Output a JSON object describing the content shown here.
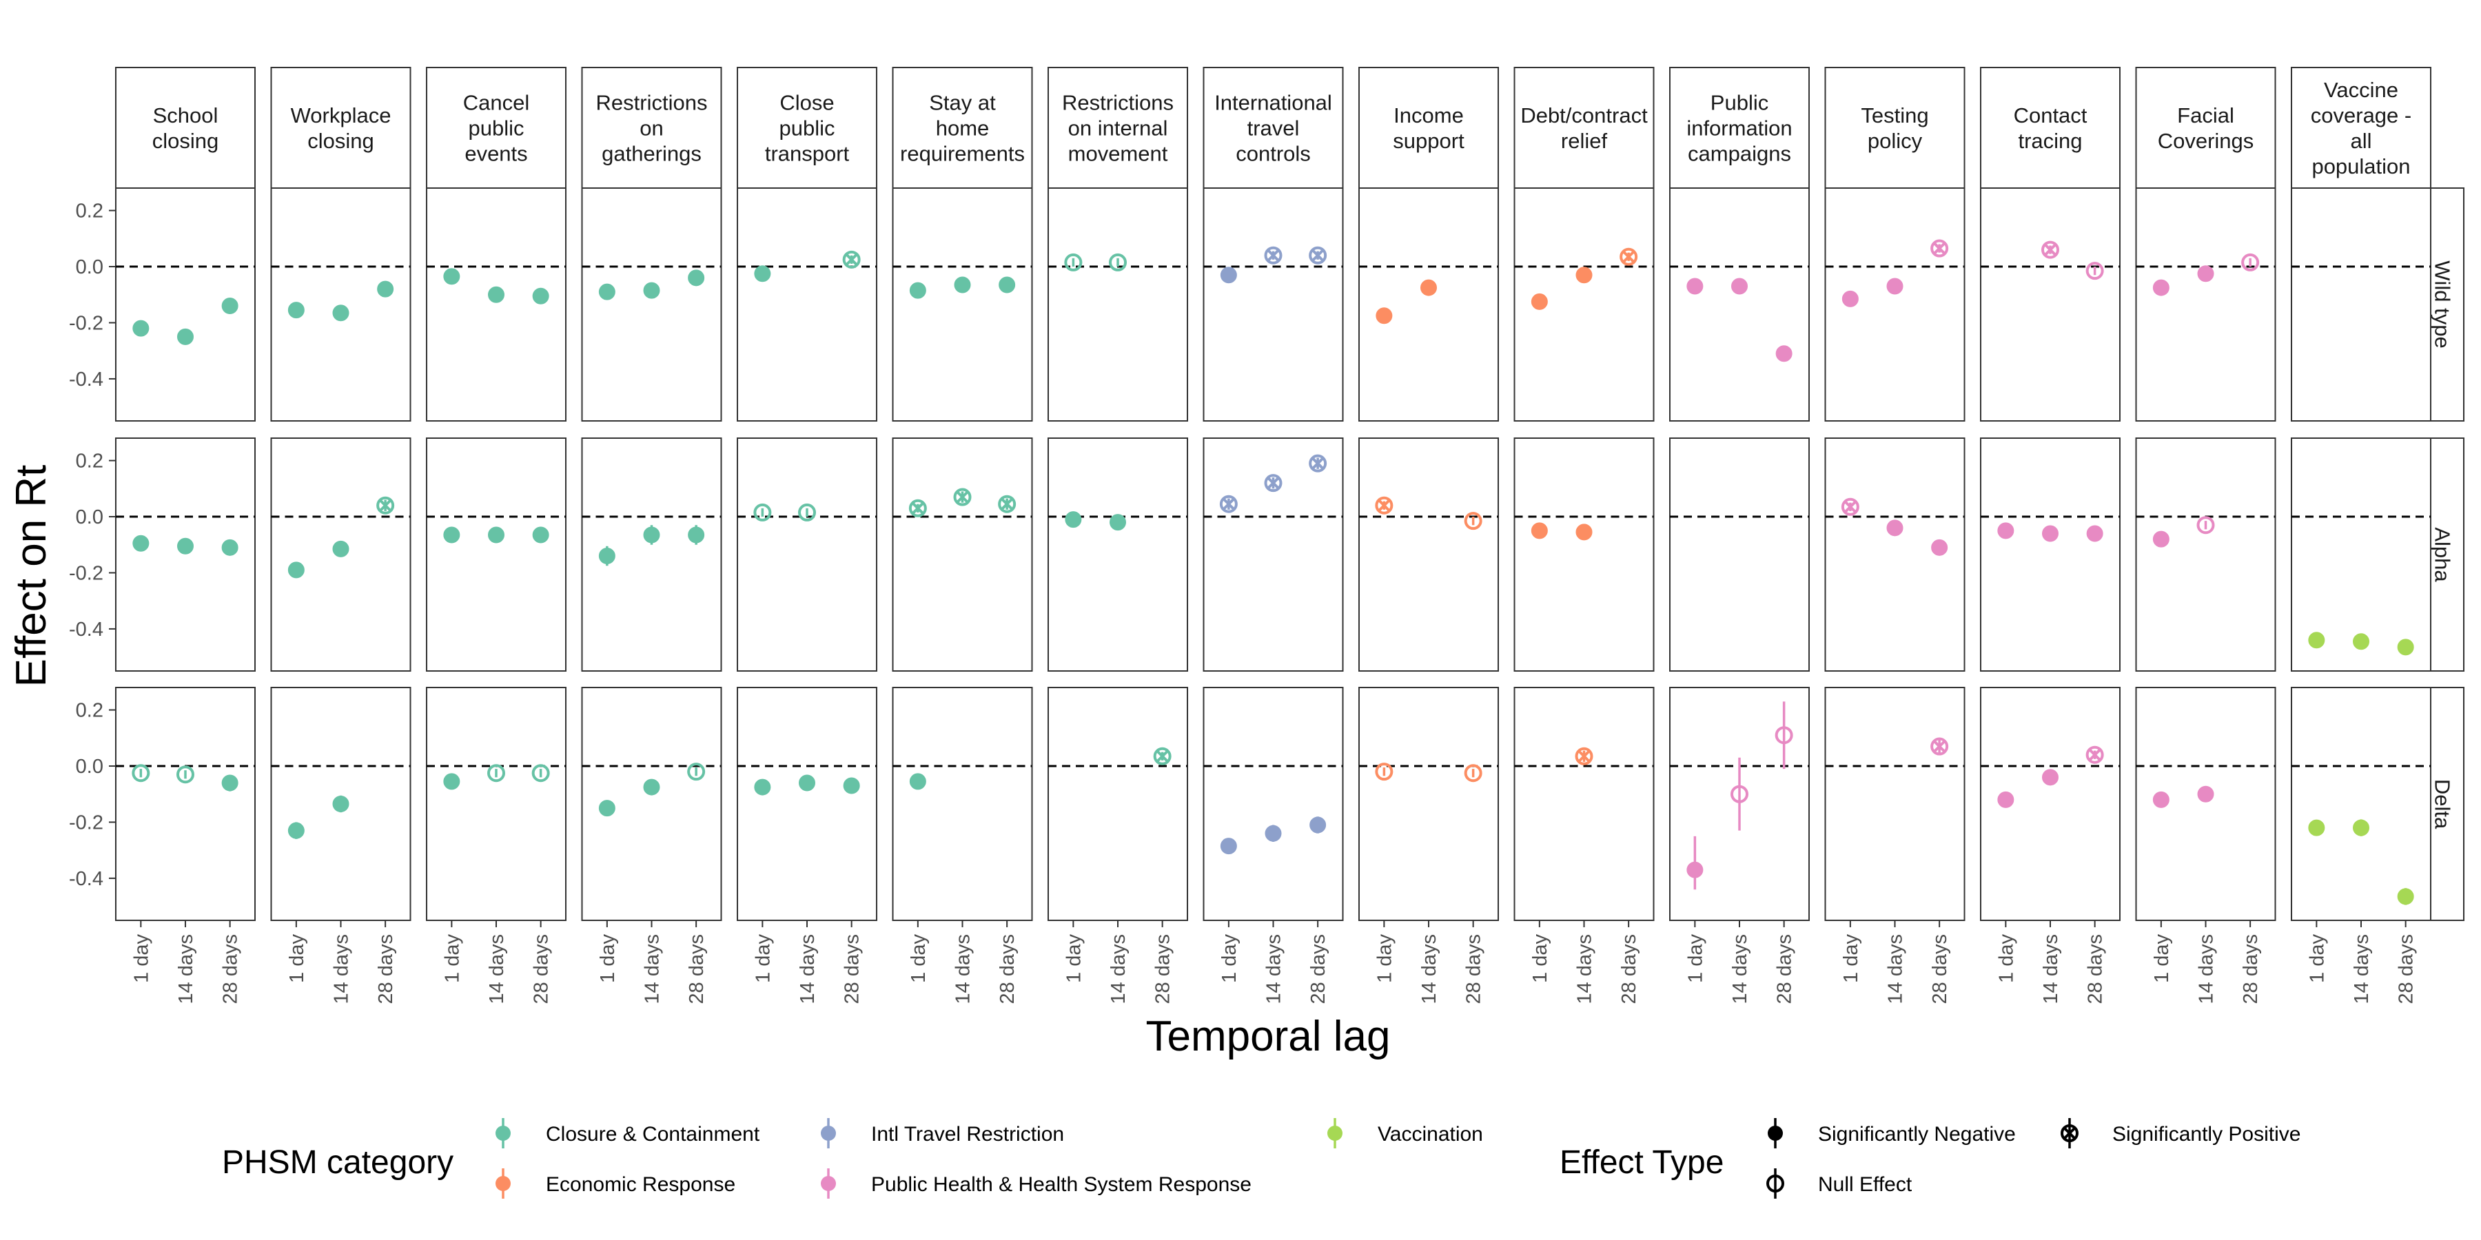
{
  "chart_data": {
    "type": "scatter",
    "subtype": "faceted point-range (estimate with interval)",
    "ylabel": "Effect on Rt",
    "xlabel": "Temporal lag",
    "x_categories": [
      "1 day",
      "14 days",
      "28 days"
    ],
    "yticks": [
      "0.2",
      "0.0",
      "-0.2",
      "-0.4"
    ],
    "ytick_values": [
      0.2,
      0.0,
      -0.2,
      -0.4
    ],
    "ylim": [
      -0.55,
      0.28
    ],
    "reference_line": 0,
    "grid": false,
    "variants": [
      "Wild type",
      "Alpha",
      "Delta"
    ],
    "measures": [
      {
        "name": "School closing",
        "label_lines": [
          "School",
          "closing"
        ],
        "category": "Closure & Containment"
      },
      {
        "name": "Workplace closing",
        "label_lines": [
          "Workplace",
          "closing"
        ],
        "category": "Closure & Containment"
      },
      {
        "name": "Cancel public events",
        "label_lines": [
          "Cancel",
          "public",
          "events"
        ],
        "category": "Closure & Containment"
      },
      {
        "name": "Restrictions on gatherings",
        "label_lines": [
          "Restrictions",
          "on",
          "gatherings"
        ],
        "category": "Closure & Containment"
      },
      {
        "name": "Close public transport",
        "label_lines": [
          "Close",
          "public",
          "transport"
        ],
        "category": "Closure & Containment"
      },
      {
        "name": "Stay at home requirements",
        "label_lines": [
          "Stay at",
          "home",
          "requirements"
        ],
        "category": "Closure & Containment"
      },
      {
        "name": "Restrictions on internal movement",
        "label_lines": [
          "Restrictions",
          "on internal",
          "movement"
        ],
        "category": "Closure & Containment"
      },
      {
        "name": "International travel controls",
        "label_lines": [
          "International",
          "travel",
          "controls"
        ],
        "category": "Intl Travel Restriction"
      },
      {
        "name": "Income support",
        "label_lines": [
          "Income",
          "support"
        ],
        "category": "Economic Response"
      },
      {
        "name": "Debt/contract relief",
        "label_lines": [
          "Debt/contract",
          "relief"
        ],
        "category": "Economic Response"
      },
      {
        "name": "Public information campaigns",
        "label_lines": [
          "Public",
          "information",
          "campaigns"
        ],
        "category": "Public Health & Health System Response"
      },
      {
        "name": "Testing policy",
        "label_lines": [
          "Testing",
          "policy"
        ],
        "category": "Public Health & Health System Response"
      },
      {
        "name": "Contact tracing",
        "label_lines": [
          "Contact",
          "tracing"
        ],
        "category": "Public Health & Health System Response"
      },
      {
        "name": "Facial Coverings",
        "label_lines": [
          "Facial",
          "Coverings"
        ],
        "category": "Public Health & Health System Response"
      },
      {
        "name": "Vaccine coverage - all population",
        "label_lines": [
          "Vaccine",
          "coverage -",
          "all",
          "population"
        ],
        "category": "Vaccination"
      }
    ],
    "points": [
      [
        [
          [
            -0.22,
            "neg",
            -0.235,
            -0.205
          ],
          [
            -0.25,
            "neg",
            -0.265,
            -0.235
          ],
          [
            -0.14,
            "neg",
            -0.155,
            -0.125
          ]
        ],
        [
          [
            -0.155,
            "neg",
            -0.17,
            -0.14
          ],
          [
            -0.165,
            "neg",
            -0.18,
            -0.15
          ],
          [
            -0.08,
            "neg",
            -0.095,
            -0.065
          ]
        ],
        [
          [
            -0.035,
            "neg",
            -0.048,
            -0.022
          ],
          [
            -0.1,
            "neg",
            -0.113,
            -0.087
          ],
          [
            -0.105,
            "neg",
            -0.12,
            -0.09
          ]
        ],
        [
          [
            -0.09,
            "neg",
            -0.103,
            -0.077
          ],
          [
            -0.085,
            "neg",
            -0.098,
            -0.072
          ],
          [
            -0.04,
            "neg",
            -0.053,
            -0.027
          ]
        ],
        [
          [
            -0.025,
            "neg",
            -0.038,
            -0.012
          ],
          null,
          [
            0.025,
            "pos",
            0.01,
            0.04
          ]
        ],
        [
          [
            -0.085,
            "neg",
            -0.098,
            -0.072
          ],
          [
            -0.065,
            "neg",
            -0.078,
            -0.052
          ],
          [
            -0.065,
            "neg",
            -0.078,
            -0.052
          ]
        ],
        [
          [
            0.015,
            "null",
            0.0,
            0.03
          ],
          [
            0.015,
            "null",
            0.0,
            0.03
          ],
          null
        ],
        [
          [
            -0.03,
            "neg",
            -0.045,
            -0.015
          ],
          [
            0.04,
            "pos",
            0.025,
            0.055
          ],
          [
            0.04,
            "pos",
            0.025,
            0.055
          ]
        ],
        [
          [
            -0.175,
            "neg",
            -0.19,
            -0.16
          ],
          [
            -0.075,
            "neg",
            -0.088,
            -0.062
          ],
          null
        ],
        [
          [
            -0.125,
            "neg",
            -0.14,
            -0.11
          ],
          [
            -0.03,
            "neg",
            -0.043,
            -0.017
          ],
          [
            0.035,
            "pos",
            0.02,
            0.05
          ]
        ],
        [
          [
            -0.07,
            "neg",
            -0.09,
            -0.05
          ],
          [
            -0.07,
            "neg",
            -0.085,
            -0.055
          ],
          [
            -0.31,
            "neg",
            -0.325,
            -0.295
          ]
        ],
        [
          [
            -0.115,
            "neg",
            -0.13,
            -0.1
          ],
          [
            -0.07,
            "neg",
            -0.083,
            -0.057
          ],
          [
            0.065,
            "pos",
            0.05,
            0.08
          ]
        ],
        [
          null,
          [
            0.06,
            "pos",
            0.045,
            0.075
          ],
          [
            -0.015,
            "null",
            -0.03,
            0.0
          ]
        ],
        [
          [
            -0.075,
            "neg",
            -0.09,
            -0.06
          ],
          [
            -0.025,
            "neg",
            -0.038,
            -0.012
          ],
          [
            0.015,
            "null",
            0.0,
            0.03
          ]
        ],
        [
          null,
          null,
          null
        ]
      ],
      [
        [
          [
            -0.095,
            "neg",
            -0.11,
            -0.08
          ],
          [
            -0.105,
            "neg",
            -0.12,
            -0.09
          ],
          [
            -0.11,
            "neg",
            -0.125,
            -0.095
          ]
        ],
        [
          [
            -0.19,
            "neg",
            -0.205,
            -0.175
          ],
          [
            -0.115,
            "neg",
            -0.13,
            -0.1
          ],
          [
            0.04,
            "pos",
            0.02,
            0.06
          ]
        ],
        [
          [
            -0.065,
            "neg",
            -0.08,
            -0.05
          ],
          [
            -0.065,
            "neg",
            -0.078,
            -0.052
          ],
          [
            -0.065,
            "neg",
            -0.08,
            -0.05
          ]
        ],
        [
          [
            -0.14,
            "neg",
            -0.175,
            -0.105
          ],
          [
            -0.065,
            "neg",
            -0.1,
            -0.03
          ],
          [
            -0.065,
            "neg",
            -0.1,
            -0.03
          ]
        ],
        [
          [
            0.015,
            "null",
            0.0,
            0.03
          ],
          [
            0.015,
            "null",
            0.0,
            0.03
          ],
          null
        ],
        [
          [
            0.03,
            "pos",
            0.015,
            0.045
          ],
          [
            0.07,
            "pos",
            0.05,
            0.09
          ],
          [
            0.045,
            "pos",
            0.025,
            0.065
          ]
        ],
        [
          [
            -0.01,
            "neg",
            -0.02,
            0.0
          ],
          [
            -0.02,
            "neg",
            -0.03,
            -0.01
          ],
          null
        ],
        [
          [
            0.045,
            "pos",
            0.025,
            0.065
          ],
          [
            0.12,
            "pos",
            0.1,
            0.14
          ],
          [
            0.19,
            "pos",
            0.17,
            0.21
          ]
        ],
        [
          [
            0.04,
            "pos",
            0.025,
            0.055
          ],
          null,
          [
            -0.015,
            "null",
            -0.03,
            0.0
          ]
        ],
        [
          [
            -0.05,
            "neg",
            -0.063,
            -0.037
          ],
          [
            -0.055,
            "neg",
            -0.068,
            -0.042
          ],
          null
        ],
        [
          null,
          null,
          null
        ],
        [
          [
            0.035,
            "pos",
            0.02,
            0.05
          ],
          [
            -0.04,
            "neg",
            -0.053,
            -0.027
          ],
          [
            -0.11,
            "neg",
            -0.123,
            -0.097
          ]
        ],
        [
          [
            -0.05,
            "neg",
            -0.063,
            -0.037
          ],
          [
            -0.06,
            "neg",
            -0.073,
            -0.047
          ],
          [
            -0.06,
            "neg",
            -0.073,
            -0.047
          ]
        ],
        [
          [
            -0.08,
            "neg",
            -0.095,
            -0.065
          ],
          [
            -0.03,
            "null",
            -0.045,
            -0.015
          ],
          null
        ],
        [
          [
            -0.44,
            "neg",
            -0.455,
            -0.425
          ],
          [
            -0.445,
            "neg",
            -0.46,
            -0.43
          ],
          [
            -0.465,
            "neg",
            -0.49,
            -0.44
          ]
        ]
      ],
      [
        [
          [
            -0.025,
            "null",
            -0.04,
            -0.01
          ],
          [
            -0.03,
            "null",
            -0.045,
            -0.015
          ],
          [
            -0.06,
            "neg",
            -0.09,
            -0.035
          ]
        ],
        [
          [
            -0.23,
            "neg",
            -0.26,
            -0.2
          ],
          [
            -0.135,
            "neg",
            -0.165,
            -0.105
          ],
          null
        ],
        [
          [
            -0.055,
            "neg",
            -0.068,
            -0.042
          ],
          [
            -0.025,
            "null",
            -0.04,
            -0.01
          ],
          [
            -0.025,
            "null",
            -0.04,
            -0.01
          ]
        ],
        [
          [
            -0.15,
            "neg",
            -0.165,
            -0.135
          ],
          [
            -0.075,
            "neg",
            -0.09,
            -0.06
          ],
          [
            -0.02,
            "null",
            -0.035,
            -0.005
          ]
        ],
        [
          [
            -0.075,
            "neg",
            -0.09,
            -0.06
          ],
          [
            -0.06,
            "neg",
            -0.075,
            -0.045
          ],
          [
            -0.07,
            "neg",
            -0.09,
            -0.05
          ]
        ],
        [
          [
            -0.055,
            "neg",
            -0.07,
            -0.04
          ],
          null,
          null
        ],
        [
          null,
          null,
          [
            0.035,
            "pos",
            0.02,
            0.05
          ]
        ],
        [
          [
            -0.285,
            "neg",
            -0.31,
            -0.26
          ],
          [
            -0.24,
            "neg",
            -0.27,
            -0.21
          ],
          [
            -0.21,
            "neg",
            -0.24,
            -0.18
          ]
        ],
        [
          [
            -0.02,
            "null",
            -0.035,
            -0.005
          ],
          null,
          [
            -0.025,
            "null",
            -0.04,
            -0.01
          ]
        ],
        [
          null,
          [
            0.035,
            "pos",
            0.015,
            0.055
          ],
          null
        ],
        [
          [
            -0.37,
            "neg",
            -0.44,
            -0.25
          ],
          [
            -0.1,
            "null",
            -0.23,
            0.03
          ],
          [
            0.11,
            "null",
            -0.01,
            0.23
          ]
        ],
        [
          null,
          null,
          [
            0.07,
            "pos",
            0.04,
            0.1
          ]
        ],
        [
          [
            -0.12,
            "neg",
            -0.133,
            -0.107
          ],
          [
            -0.04,
            "neg",
            -0.055,
            -0.025
          ],
          [
            0.04,
            "pos",
            0.025,
            0.055
          ]
        ],
        [
          [
            -0.12,
            "neg",
            -0.145,
            -0.095
          ],
          [
            -0.1,
            "neg",
            -0.125,
            -0.075
          ],
          null
        ],
        [
          [
            -0.22,
            "neg",
            -0.245,
            -0.195
          ],
          [
            -0.22,
            "neg",
            -0.25,
            -0.19
          ],
          [
            -0.465,
            "neg",
            -0.495,
            -0.435
          ]
        ]
      ]
    ],
    "point_format": "[estimate, effect_type, lower, upper]",
    "legend": {
      "placement": "bottom",
      "category_title": "PHSM category",
      "categories": [
        {
          "name": "Closure & Containment",
          "color": "#66c2a5"
        },
        {
          "name": "Economic Response",
          "color": "#fc8d62"
        },
        {
          "name": "Intl Travel Restriction",
          "color": "#8da0cb"
        },
        {
          "name": "Public Health & Health System Response",
          "color": "#e78ac3"
        },
        {
          "name": "Vaccination",
          "color": "#a6d854"
        }
      ],
      "effect_title": "Effect Type",
      "effects": [
        {
          "key": "neg",
          "name": "Significantly Negative"
        },
        {
          "key": "null",
          "name": "Null Effect"
        },
        {
          "key": "pos",
          "name": "Significantly Positive"
        }
      ]
    }
  }
}
